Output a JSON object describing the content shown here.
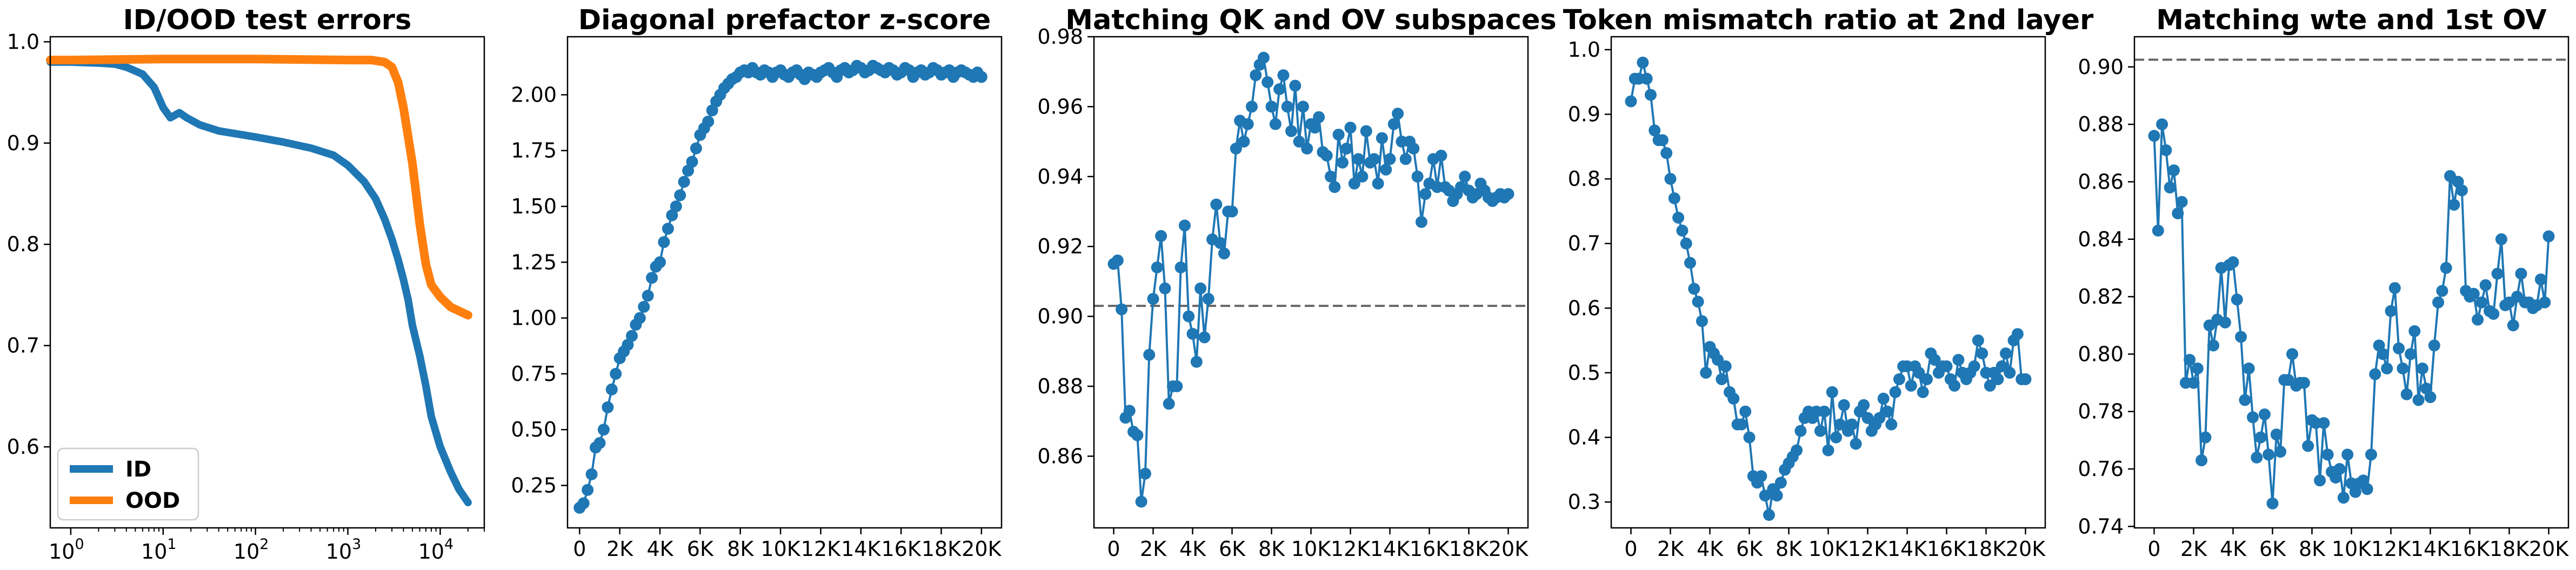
{
  "colors": {
    "blue": "#1f77b4",
    "orange": "#ff7f0e",
    "ref": "#666666"
  },
  "chart_data": [
    {
      "type": "line",
      "title": "ID/OOD test errors",
      "xscale": "log",
      "xlim": [
        0.6,
        30000
      ],
      "ylim": [
        0.52,
        1.005
      ],
      "x_ticks": [
        {
          "value": 1,
          "label": "10",
          "exp": "0"
        },
        {
          "value": 10,
          "label": "10",
          "exp": "1"
        },
        {
          "value": 100,
          "label": "10",
          "exp": "2"
        },
        {
          "value": 1000,
          "label": "10",
          "exp": "3"
        },
        {
          "value": 10000,
          "label": "10",
          "exp": "4"
        }
      ],
      "y_ticks": [
        0.6,
        0.7,
        0.8,
        0.9,
        1.0
      ],
      "y_tick_labels": [
        "0.6",
        "0.7",
        "0.8",
        "0.9",
        "1.0"
      ],
      "legend": {
        "position": "lower-left",
        "entries": [
          "ID",
          "OOD"
        ]
      },
      "series": [
        {
          "name": "ID",
          "color": "#1f77b4",
          "x": [
            0.6,
            1,
            2,
            3,
            4,
            6,
            8,
            10,
            12,
            15,
            18,
            25,
            40,
            100,
            200,
            400,
            700,
            1000,
            1500,
            2000,
            2500,
            3000,
            3500,
            4000,
            4500,
            5000,
            6000,
            7000,
            8000,
            10000,
            13000,
            16000,
            20000
          ],
          "y": [
            0.98,
            0.98,
            0.979,
            0.978,
            0.975,
            0.968,
            0.955,
            0.935,
            0.925,
            0.93,
            0.925,
            0.918,
            0.912,
            0.906,
            0.901,
            0.895,
            0.888,
            0.878,
            0.862,
            0.845,
            0.825,
            0.805,
            0.785,
            0.765,
            0.745,
            0.72,
            0.69,
            0.66,
            0.63,
            0.6,
            0.575,
            0.558,
            0.545
          ]
        },
        {
          "name": "OOD",
          "color": "#ff7f0e",
          "x": [
            0.6,
            1,
            10,
            100,
            1000,
            1800,
            2500,
            3000,
            3500,
            4000,
            5000,
            6000,
            7000,
            8000,
            10000,
            13000,
            20000
          ],
          "y": [
            0.982,
            0.982,
            0.983,
            0.983,
            0.982,
            0.982,
            0.98,
            0.975,
            0.96,
            0.935,
            0.88,
            0.82,
            0.78,
            0.76,
            0.748,
            0.738,
            0.73
          ]
        }
      ]
    },
    {
      "type": "line",
      "title": "Diagonal prefactor z-score",
      "xlim": [
        -600,
        21000
      ],
      "ylim": [
        0.06,
        2.26
      ],
      "x_ticks": [
        0,
        2000,
        4000,
        6000,
        8000,
        10000,
        12000,
        14000,
        16000,
        18000,
        20000
      ],
      "x_tick_labels": [
        "0",
        "2K",
        "4K",
        "6K",
        "8K",
        "10K",
        "12K",
        "14K",
        "16K",
        "18K",
        "20K"
      ],
      "y_ticks": [
        0.25,
        0.5,
        0.75,
        1.0,
        1.25,
        1.5,
        1.75,
        2.0
      ],
      "y_tick_labels": [
        "0.25",
        "0.50",
        "0.75",
        "1.00",
        "1.25",
        "1.50",
        "1.75",
        "2.00"
      ],
      "x": [
        0,
        200,
        400,
        600,
        800,
        1000,
        1200,
        1400,
        1600,
        1800,
        2000,
        2200,
        2400,
        2600,
        2800,
        3000,
        3200,
        3400,
        3600,
        3800,
        4000,
        4200,
        4400,
        4600,
        4800,
        5000,
        5200,
        5400,
        5600,
        5800,
        6000,
        6200,
        6400,
        6600,
        6800,
        7000,
        7200,
        7400,
        7600,
        7800,
        8000,
        8200,
        8400,
        8600,
        8800,
        9000,
        9200,
        9400,
        9600,
        9800,
        10000,
        10200,
        10400,
        10600,
        10800,
        11000,
        11200,
        11400,
        11600,
        11800,
        12000,
        12200,
        12400,
        12600,
        12800,
        13000,
        13200,
        13400,
        13600,
        13800,
        14000,
        14200,
        14400,
        14600,
        14800,
        15000,
        15200,
        15400,
        15600,
        15800,
        16000,
        16200,
        16400,
        16600,
        16800,
        17000,
        17200,
        17400,
        17600,
        17800,
        18000,
        18200,
        18400,
        18600,
        18800,
        19000,
        19200,
        19400,
        19600,
        19800,
        20000
      ],
      "y": [
        0.15,
        0.17,
        0.23,
        0.3,
        0.42,
        0.44,
        0.5,
        0.6,
        0.68,
        0.75,
        0.82,
        0.85,
        0.88,
        0.92,
        0.97,
        1.0,
        1.05,
        1.1,
        1.18,
        1.23,
        1.25,
        1.34,
        1.4,
        1.46,
        1.5,
        1.55,
        1.61,
        1.66,
        1.7,
        1.76,
        1.82,
        1.85,
        1.88,
        1.93,
        1.97,
        2.0,
        2.03,
        2.05,
        2.07,
        2.08,
        2.1,
        2.11,
        2.1,
        2.12,
        2.1,
        2.09,
        2.11,
        2.1,
        2.08,
        2.1,
        2.11,
        2.09,
        2.08,
        2.1,
        2.11,
        2.09,
        2.07,
        2.1,
        2.09,
        2.08,
        2.1,
        2.11,
        2.12,
        2.1,
        2.08,
        2.11,
        2.12,
        2.1,
        2.11,
        2.13,
        2.12,
        2.1,
        2.11,
        2.13,
        2.12,
        2.11,
        2.1,
        2.12,
        2.11,
        2.09,
        2.1,
        2.12,
        2.11,
        2.08,
        2.1,
        2.11,
        2.09,
        2.1,
        2.12,
        2.11,
        2.09,
        2.1,
        2.11,
        2.08,
        2.1,
        2.11,
        2.1,
        2.09,
        2.08,
        2.1,
        2.08
      ]
    },
    {
      "type": "line",
      "title": "Matching QK and OV subspaces",
      "xlim": [
        -1000,
        21000
      ],
      "ylim": [
        0.8395,
        0.98
      ],
      "ref_line": 0.903,
      "x_ticks": [
        0,
        2000,
        4000,
        6000,
        8000,
        10000,
        12000,
        14000,
        16000,
        18000,
        20000
      ],
      "x_tick_labels": [
        "0",
        "2K",
        "4K",
        "6K",
        "8K",
        "10K",
        "12K",
        "14K",
        "16K",
        "18K",
        "20K"
      ],
      "y_ticks": [
        0.86,
        0.88,
        0.9,
        0.92,
        0.94,
        0.96,
        0.98
      ],
      "y_tick_labels": [
        "0.86",
        "0.88",
        "0.90",
        "0.92",
        "0.94",
        "0.96",
        "0.98"
      ],
      "x": [
        0,
        200,
        400,
        600,
        800,
        1000,
        1200,
        1400,
        1600,
        1800,
        2000,
        2200,
        2400,
        2600,
        2800,
        3000,
        3200,
        3400,
        3600,
        3800,
        4000,
        4200,
        4400,
        4600,
        4800,
        5000,
        5200,
        5400,
        5600,
        5800,
        6000,
        6200,
        6400,
        6600,
        6800,
        7000,
        7200,
        7400,
        7600,
        7800,
        8000,
        8200,
        8400,
        8600,
        8800,
        9000,
        9200,
        9400,
        9600,
        9800,
        10000,
        10200,
        10400,
        10600,
        10800,
        11000,
        11200,
        11400,
        11600,
        11800,
        12000,
        12200,
        12400,
        12600,
        12800,
        13000,
        13200,
        13400,
        13600,
        13800,
        14000,
        14200,
        14400,
        14600,
        14800,
        15000,
        15200,
        15400,
        15600,
        15800,
        16000,
        16200,
        16400,
        16600,
        16800,
        17000,
        17200,
        17400,
        17600,
        17800,
        18000,
        18200,
        18400,
        18600,
        18800,
        19000,
        19200,
        19400,
        19600,
        19800,
        20000
      ],
      "y": [
        0.915,
        0.916,
        0.902,
        0.871,
        0.873,
        0.867,
        0.866,
        0.847,
        0.855,
        0.889,
        0.905,
        0.914,
        0.923,
        0.908,
        0.875,
        0.88,
        0.88,
        0.914,
        0.926,
        0.9,
        0.895,
        0.887,
        0.908,
        0.894,
        0.905,
        0.922,
        0.932,
        0.921,
        0.918,
        0.93,
        0.93,
        0.948,
        0.956,
        0.95,
        0.955,
        0.96,
        0.969,
        0.972,
        0.974,
        0.967,
        0.96,
        0.955,
        0.965,
        0.969,
        0.96,
        0.953,
        0.966,
        0.95,
        0.96,
        0.948,
        0.955,
        0.954,
        0.957,
        0.947,
        0.946,
        0.94,
        0.937,
        0.952,
        0.944,
        0.948,
        0.954,
        0.938,
        0.945,
        0.94,
        0.953,
        0.944,
        0.945,
        0.938,
        0.951,
        0.942,
        0.945,
        0.955,
        0.958,
        0.95,
        0.945,
        0.95,
        0.948,
        0.94,
        0.927,
        0.935,
        0.938,
        0.945,
        0.937,
        0.946,
        0.937,
        0.936,
        0.933,
        0.935,
        0.937,
        0.94,
        0.936,
        0.934,
        0.935,
        0.938,
        0.936,
        0.934,
        0.933,
        0.934,
        0.935,
        0.934,
        0.935
      ]
    },
    {
      "type": "line",
      "title": "Token mismatch ratio at 2nd layer",
      "xlim": [
        -1000,
        21000
      ],
      "ylim": [
        0.26,
        1.02
      ],
      "x_ticks": [
        0,
        2000,
        4000,
        6000,
        8000,
        10000,
        12000,
        14000,
        16000,
        18000,
        20000
      ],
      "x_tick_labels": [
        "0",
        "2K",
        "4K",
        "6K",
        "8K",
        "10K",
        "12K",
        "14K",
        "16K",
        "18K",
        "20K"
      ],
      "y_ticks": [
        0.3,
        0.4,
        0.5,
        0.6,
        0.7,
        0.8,
        0.9,
        1.0
      ],
      "y_tick_labels": [
        "0.3",
        "0.4",
        "0.5",
        "0.6",
        "0.7",
        "0.8",
        "0.9",
        "1.0"
      ],
      "x": [
        0,
        200,
        400,
        600,
        800,
        1000,
        1200,
        1400,
        1600,
        1800,
        2000,
        2200,
        2400,
        2600,
        2800,
        3000,
        3200,
        3400,
        3600,
        3800,
        4000,
        4200,
        4400,
        4600,
        4800,
        5000,
        5200,
        5400,
        5600,
        5800,
        6000,
        6200,
        6400,
        6600,
        6800,
        7000,
        7200,
        7400,
        7600,
        7800,
        8000,
        8200,
        8400,
        8600,
        8800,
        9000,
        9200,
        9400,
        9600,
        9800,
        10000,
        10200,
        10400,
        10600,
        10800,
        11000,
        11200,
        11400,
        11600,
        11800,
        12000,
        12200,
        12400,
        12600,
        12800,
        13000,
        13200,
        13400,
        13600,
        13800,
        14000,
        14200,
        14400,
        14600,
        14800,
        15000,
        15200,
        15400,
        15600,
        15800,
        16000,
        16200,
        16400,
        16600,
        16800,
        17000,
        17200,
        17400,
        17600,
        17800,
        18000,
        18200,
        18400,
        18600,
        18800,
        19000,
        19200,
        19400,
        19600,
        19800,
        20000
      ],
      "y": [
        0.92,
        0.955,
        0.955,
        0.98,
        0.955,
        0.93,
        0.875,
        0.86,
        0.86,
        0.84,
        0.8,
        0.77,
        0.74,
        0.72,
        0.7,
        0.67,
        0.63,
        0.61,
        0.58,
        0.5,
        0.54,
        0.53,
        0.52,
        0.49,
        0.51,
        0.47,
        0.46,
        0.42,
        0.42,
        0.44,
        0.4,
        0.34,
        0.33,
        0.34,
        0.31,
        0.28,
        0.32,
        0.31,
        0.33,
        0.35,
        0.36,
        0.37,
        0.38,
        0.41,
        0.43,
        0.44,
        0.43,
        0.44,
        0.41,
        0.44,
        0.38,
        0.47,
        0.4,
        0.42,
        0.45,
        0.41,
        0.42,
        0.39,
        0.44,
        0.45,
        0.43,
        0.41,
        0.42,
        0.43,
        0.46,
        0.44,
        0.42,
        0.47,
        0.49,
        0.51,
        0.51,
        0.48,
        0.51,
        0.5,
        0.47,
        0.49,
        0.53,
        0.52,
        0.5,
        0.51,
        0.51,
        0.49,
        0.48,
        0.52,
        0.5,
        0.49,
        0.5,
        0.51,
        0.55,
        0.53,
        0.5,
        0.48,
        0.5,
        0.49,
        0.51,
        0.53,
        0.5,
        0.55,
        0.56,
        0.49,
        0.49
      ]
    },
    {
      "type": "line",
      "title": "Matching wte and 1st OV",
      "xlim": [
        -1000,
        21000
      ],
      "ylim": [
        0.7395,
        0.9105
      ],
      "ref_line": 0.9025,
      "x_ticks": [
        0,
        2000,
        4000,
        6000,
        8000,
        10000,
        12000,
        14000,
        16000,
        18000,
        20000
      ],
      "x_tick_labels": [
        "0",
        "2K",
        "4K",
        "6K",
        "8K",
        "10K",
        "12K",
        "14K",
        "16K",
        "18K",
        "20K"
      ],
      "y_ticks": [
        0.74,
        0.76,
        0.78,
        0.8,
        0.82,
        0.84,
        0.86,
        0.88,
        0.9
      ],
      "y_tick_labels": [
        "0.74",
        "0.76",
        "0.78",
        "0.80",
        "0.82",
        "0.84",
        "0.86",
        "0.88",
        "0.90"
      ],
      "x": [
        0,
        200,
        400,
        600,
        800,
        1000,
        1200,
        1400,
        1600,
        1800,
        2000,
        2200,
        2400,
        2600,
        2800,
        3000,
        3200,
        3400,
        3600,
        3800,
        4000,
        4200,
        4400,
        4600,
        4800,
        5000,
        5200,
        5400,
        5600,
        5800,
        6000,
        6200,
        6400,
        6600,
        6800,
        7000,
        7200,
        7400,
        7600,
        7800,
        8000,
        8200,
        8400,
        8600,
        8800,
        9000,
        9200,
        9400,
        9600,
        9800,
        10000,
        10200,
        10400,
        10600,
        10800,
        11000,
        11200,
        11400,
        11600,
        11800,
        12000,
        12200,
        12400,
        12600,
        12800,
        13000,
        13200,
        13400,
        13600,
        13800,
        14000,
        14200,
        14400,
        14600,
        14800,
        15000,
        15200,
        15400,
        15600,
        15800,
        16000,
        16200,
        16400,
        16600,
        16800,
        17000,
        17200,
        17400,
        17600,
        17800,
        18000,
        18200,
        18400,
        18600,
        18800,
        19000,
        19200,
        19400,
        19600,
        19800,
        20000
      ],
      "y": [
        0.876,
        0.843,
        0.88,
        0.871,
        0.858,
        0.864,
        0.849,
        0.853,
        0.79,
        0.798,
        0.79,
        0.795,
        0.763,
        0.771,
        0.81,
        0.803,
        0.812,
        0.83,
        0.811,
        0.831,
        0.832,
        0.819,
        0.806,
        0.784,
        0.795,
        0.778,
        0.764,
        0.771,
        0.779,
        0.765,
        0.748,
        0.772,
        0.766,
        0.791,
        0.791,
        0.8,
        0.789,
        0.79,
        0.79,
        0.768,
        0.777,
        0.776,
        0.756,
        0.776,
        0.765,
        0.759,
        0.757,
        0.76,
        0.75,
        0.765,
        0.755,
        0.752,
        0.755,
        0.756,
        0.753,
        0.765,
        0.793,
        0.803,
        0.8,
        0.795,
        0.815,
        0.823,
        0.802,
        0.795,
        0.786,
        0.8,
        0.808,
        0.784,
        0.795,
        0.788,
        0.785,
        0.803,
        0.818,
        0.822,
        0.83,
        0.862,
        0.852,
        0.86,
        0.857,
        0.822,
        0.82,
        0.821,
        0.812,
        0.818,
        0.824,
        0.815,
        0.814,
        0.828,
        0.84,
        0.817,
        0.818,
        0.81,
        0.82,
        0.828,
        0.818,
        0.818,
        0.816,
        0.817,
        0.826,
        0.818,
        0.841
      ]
    }
  ]
}
